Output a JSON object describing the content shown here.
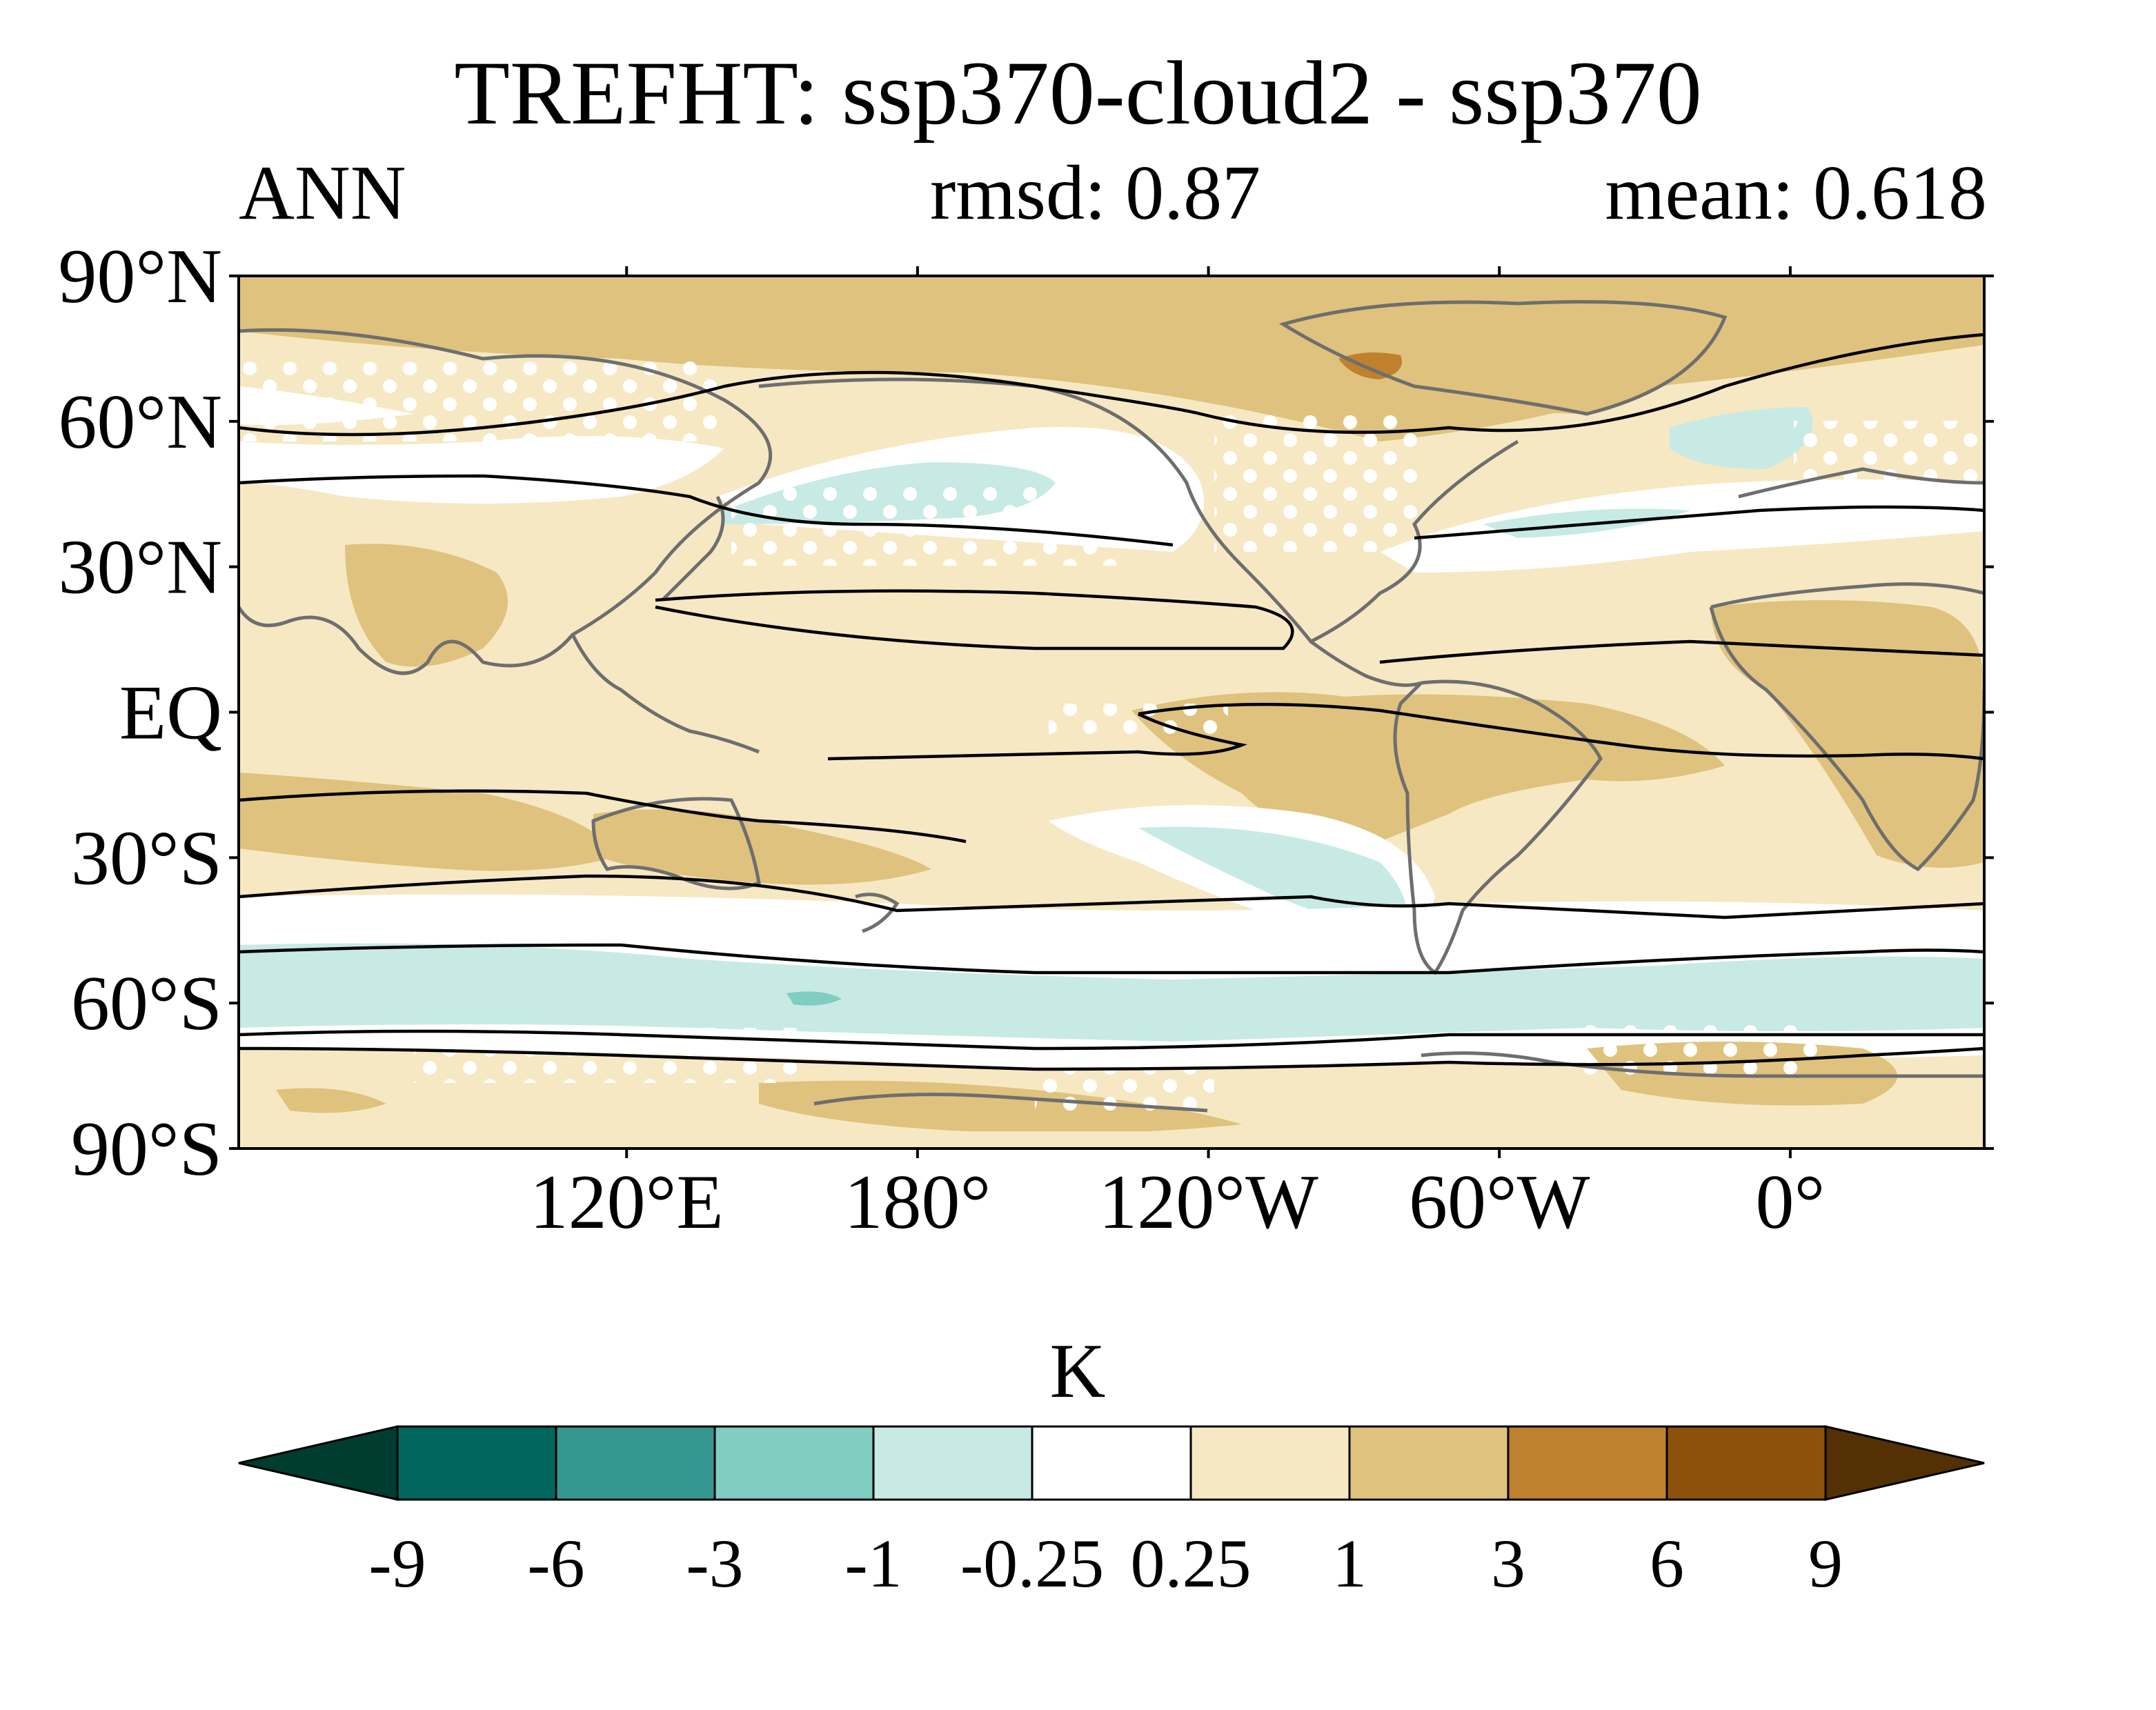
{
  "header": {
    "title": "TREFHT: ssp370-cloud2 - ssp370",
    "season": "ANN",
    "rmsd": "rmsd: 0.87",
    "mean": "mean: 0.618"
  },
  "axes": {
    "lat_labels": [
      "90°N",
      "60°N",
      "30°N",
      "EQ",
      "30°S",
      "60°S",
      "90°S"
    ],
    "lat_values": [
      90,
      60,
      30,
      0,
      -30,
      -60,
      -90
    ],
    "lon_labels": [
      "120°E",
      "180°",
      "120°W",
      "60°W",
      "0°"
    ],
    "lon_values": [
      120,
      180,
      240,
      300,
      360
    ],
    "lon_range": [
      40,
      400
    ],
    "lat_range": [
      -90,
      90
    ]
  },
  "colorbar": {
    "unit": "K",
    "levels": [
      "-9",
      "-6",
      "-3",
      "-1",
      "-0.25",
      "0.25",
      "1",
      "3",
      "6",
      "9"
    ],
    "colors": [
      "#003c30",
      "#01665e",
      "#35978f",
      "#80cdc1",
      "#c7eae5",
      "#ffffff",
      "#f6e8c3",
      "#dfc27d",
      "#bf812d",
      "#8c510a",
      "#543005"
    ]
  },
  "colors": {
    "land_outline": "#6e6e6e",
    "contour": "#000000",
    "stipple": "#ffffff"
  }
}
